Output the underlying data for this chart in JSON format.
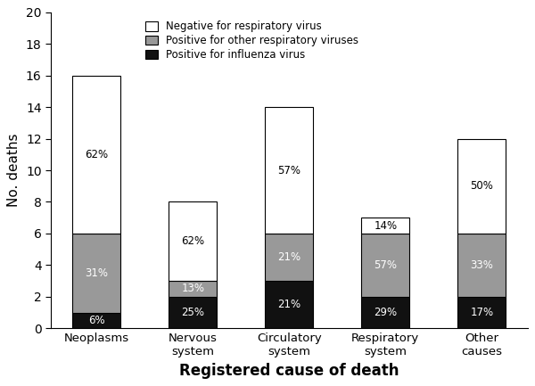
{
  "categories": [
    "Neoplasms",
    "Nervous\nsystem",
    "Circulatory\nsystem",
    "Respiratory\nsystem",
    "Other\ncauses"
  ],
  "influenza": [
    1,
    2,
    3,
    2,
    2
  ],
  "other_respiratory": [
    5,
    1,
    3,
    4,
    4
  ],
  "negative": [
    10,
    5,
    8,
    1,
    6
  ],
  "influenza_pct": [
    "6%",
    "25%",
    "21%",
    "29%",
    "17%"
  ],
  "other_pct": [
    "31%",
    "13%",
    "21%",
    "57%",
    "33%"
  ],
  "negative_pct": [
    "62%",
    "62%",
    "57%",
    "14%",
    "50%"
  ],
  "color_influenza": "#111111",
  "color_other": "#999999",
  "color_negative": "#ffffff",
  "ylabel": "No. deaths",
  "xlabel": "Registered cause of death",
  "ylim": [
    0,
    20
  ],
  "yticks": [
    0,
    2,
    4,
    6,
    8,
    10,
    12,
    14,
    16,
    18,
    20
  ],
  "legend_labels": [
    "Negative for respiratory virus",
    "Positive for other respiratory viruses",
    "Positive for influenza virus"
  ],
  "legend_colors": [
    "#ffffff",
    "#999999",
    "#111111"
  ],
  "bar_edge_color": "#000000",
  "bar_width": 0.5
}
